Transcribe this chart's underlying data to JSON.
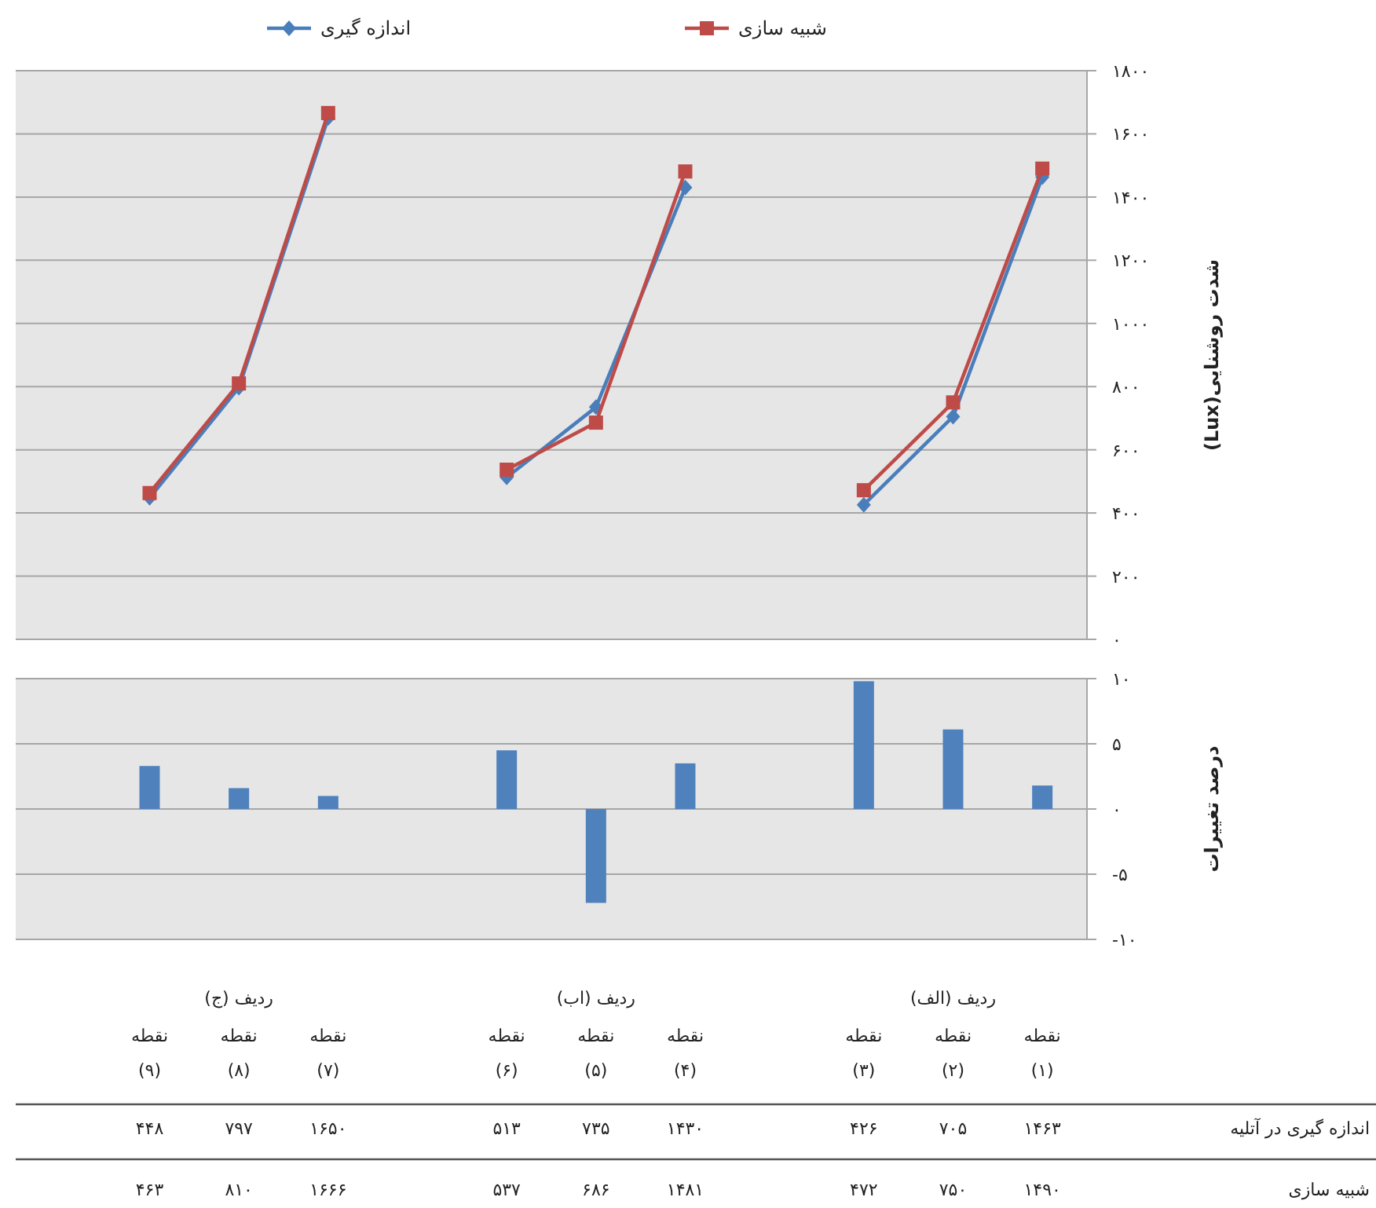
{
  "chart_data": [
    {
      "type": "line",
      "ylabel": "شدت روشنایی(Lux)",
      "categories": [
        null,
        null,
        null,
        null,
        null,
        null,
        null,
        null,
        null,
        null,
        null,
        null
      ],
      "series": [
        {
          "name": "اندازه گیری",
          "color": "#4a7ebb",
          "marker": "diamond",
          "values": [
            null,
            448,
            797,
            1650,
            null,
            513,
            735,
            1430,
            null,
            426,
            705,
            1463
          ],
          "value_labels": [
            null,
            "۴۴۸",
            "۷۹۷",
            "۱۶۵۰",
            null,
            "۵۱۳",
            "۷۳۵",
            "۱۴۳۰",
            null,
            "۴۲۶",
            "۷۰۵",
            "۱۴۶۳"
          ]
        },
        {
          "name": "شبیه سازی",
          "color": "#be4b48",
          "marker": "square",
          "values": [
            null,
            463,
            810,
            1666,
            null,
            537,
            686,
            1481,
            null,
            472,
            750,
            1490
          ],
          "value_labels": [
            null,
            "۴۶۳",
            "۸۱۰",
            "۱۶۶۶",
            null,
            "۵۳۷",
            "۶۸۶",
            "۱۴۸۱",
            null,
            "۴۷۲",
            "۷۵۰",
            "۱۴۹۰"
          ]
        }
      ],
      "ylim": [
        0,
        1800
      ],
      "yticks": [
        {
          "value": 0,
          "label": "۰"
        },
        {
          "value": 200,
          "label": "۲۰۰"
        },
        {
          "value": 400,
          "label": "۴۰۰"
        },
        {
          "value": 600,
          "label": "۶۰۰"
        },
        {
          "value": 800,
          "label": "۸۰۰"
        },
        {
          "value": 1000,
          "label": "۱۰۰۰"
        },
        {
          "value": 1200,
          "label": "۱۲۰۰"
        },
        {
          "value": 1400,
          "label": "۱۴۰۰"
        },
        {
          "value": 1600,
          "label": "۱۶۰۰"
        },
        {
          "value": 1800,
          "label": "۱۸۰۰"
        }
      ],
      "grid": "y",
      "legend": "top",
      "tick_labels": "y"
    },
    {
      "type": "bar",
      "ylabel": "درصد تغییرات",
      "categories": [
        null,
        "نقطه (۹)",
        "نقطه (۸)",
        "نقطه (۷)",
        null,
        "نقطه (۶)",
        "نقطه (۵)",
        "نقطه (۴)",
        null,
        "نقطه (۳)",
        "نقطه (۲)",
        "نقطه (۱)"
      ],
      "values": [
        null,
        3.3,
        1.6,
        1.0,
        null,
        4.5,
        -7.2,
        3.5,
        null,
        9.8,
        6.1,
        1.8
      ],
      "color": "#4f81bd",
      "ylim": [
        -10,
        10
      ],
      "yticks": [
        {
          "value": -10,
          "label": "-۱۰"
        },
        {
          "value": -5,
          "label": "-۵"
        },
        {
          "value": 0,
          "label": "۰"
        },
        {
          "value": 5,
          "label": "۵"
        },
        {
          "value": 10,
          "label": "۱۰"
        }
      ],
      "grid": "y",
      "annotations": [
        "ردیف (ج)",
        "ردیف (اب)",
        "ردیف (الف)",
        "اندازه گیری در آتلیه",
        "شبیه سازی"
      ]
    }
  ]
}
